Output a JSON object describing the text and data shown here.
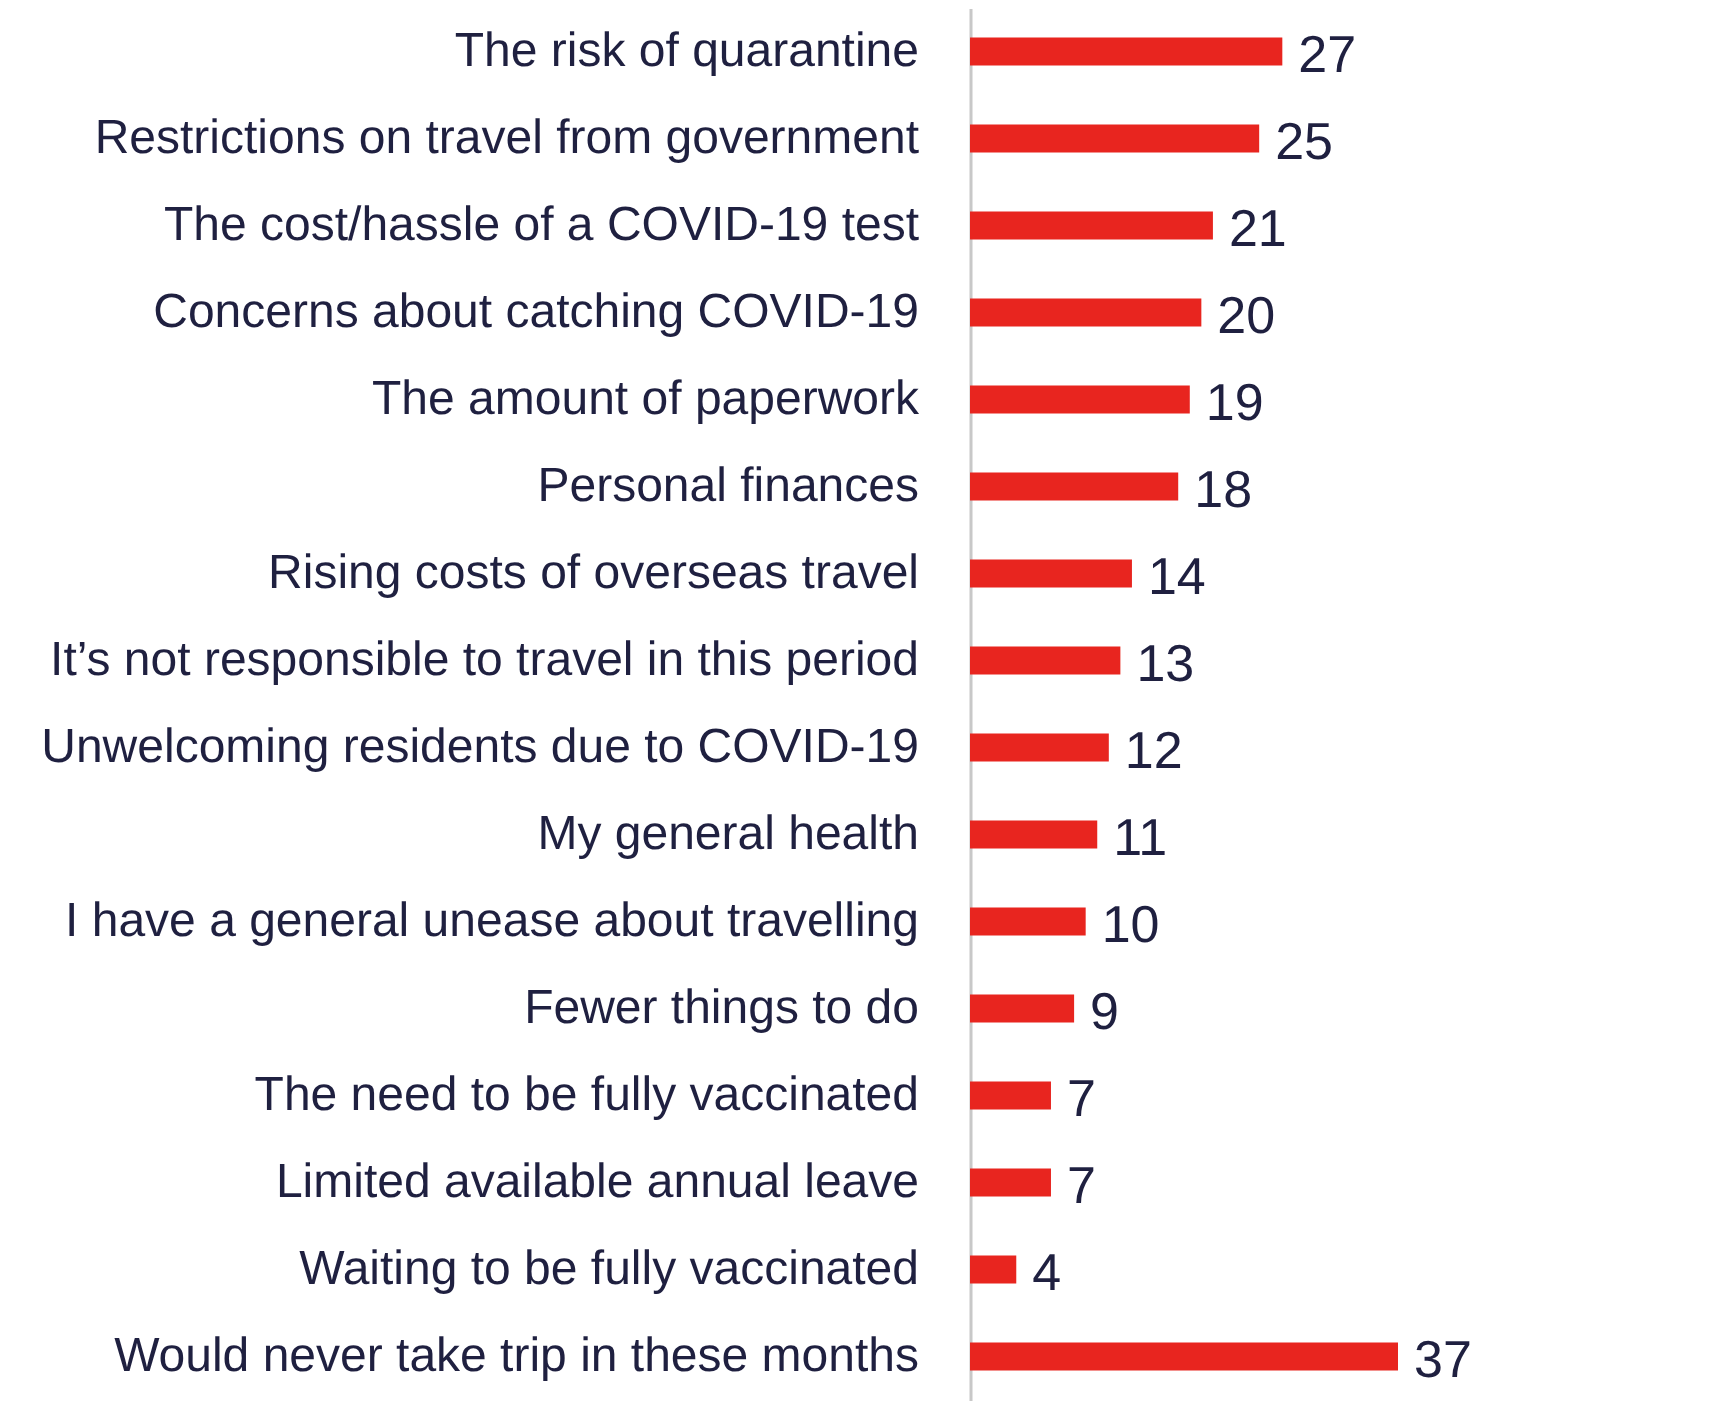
{
  "chart_data": {
    "type": "bar",
    "orientation": "horizontal",
    "data_labels": true,
    "categories": [
      "The risk of quarantine",
      "Restrictions on travel from government",
      "The cost/hassle of a COVID-19 test",
      "Concerns about catching COVID-19",
      "The amount of paperwork",
      "Personal finances",
      "Rising costs of overseas travel",
      "It’s not responsible to travel in this period",
      "Unwelcoming residents due to COVID-19",
      "My general health",
      "I have a general unease about travelling",
      "Fewer things to do",
      "The need to be fully vaccinated",
      "Limited available annual leave",
      "Waiting to be fully vaccinated",
      "Would never take trip in these months"
    ],
    "values": [
      27,
      25,
      21,
      20,
      19,
      18,
      14,
      13,
      12,
      11,
      10,
      9,
      7,
      7,
      4,
      37
    ],
    "color": "#e8251f"
  }
}
